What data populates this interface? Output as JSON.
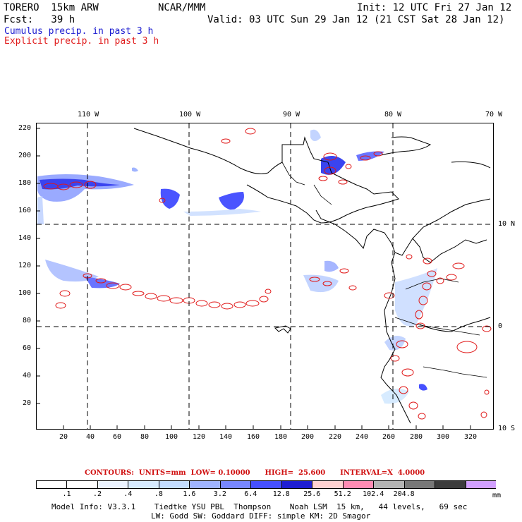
{
  "header": {
    "model": "TORERO  15km ARW",
    "org": "NCAR/MMM",
    "init": "Init: 12 UTC Fri 27 Jan 12",
    "fcst": "Fcst:   39 h",
    "valid": "Valid: 03 UTC Sun 29 Jan 12 (21 CST Sat 28 Jan 12)"
  },
  "legend": {
    "cumulus": "Cumulus precip. in past 3 h",
    "explicit": "Explicit precip. in past 3 h"
  },
  "map": {
    "lon_labels": [
      "110 W",
      "100 W",
      "90 W",
      "80 W",
      "70 W"
    ],
    "lat_labels": [
      "10 N",
      "0",
      "10 S"
    ],
    "x_ticks": [
      "20",
      "40",
      "60",
      "80",
      "100",
      "120",
      "140",
      "160",
      "180",
      "200",
      "220",
      "240",
      "260",
      "280",
      "300",
      "320"
    ],
    "y_ticks": [
      "220",
      "200",
      "180",
      "160",
      "140",
      "120",
      "100",
      "80",
      "60",
      "40",
      "20"
    ]
  },
  "contours_line": {
    "label": "CONTOURS:  UNITS=mm  LOW= 0.10000      HIGH=  25.600      INTERVAL=X  4.0000"
  },
  "colorbar": {
    "colors": [
      "#ffffff",
      "#ffffff",
      "#ebf3ff",
      "#d7ebff",
      "#c3dcff",
      "#a0b4ff",
      "#7887ff",
      "#4650ff",
      "#1e1ed2",
      "#ffd2d2",
      "#ff8cb4",
      "#b4b4b4",
      "#787878",
      "#3c3c3c",
      "#d2a0ff"
    ],
    "labels": [
      ".1",
      ".2",
      ".4",
      ".8",
      "1.6",
      "3.2",
      "6.4",
      "12.8",
      "25.6",
      "51.2",
      "102.4",
      "204.8"
    ],
    "unit": "mm"
  },
  "footer": {
    "line1": "Model Info: V3.3.1    Tiedtke YSU PBL  Thompson    Noah LSM  15 km,   44 levels,   69 sec",
    "line2": "LW: Godd SW: Goddard DIFF: simple KM: 2D Smagor"
  }
}
